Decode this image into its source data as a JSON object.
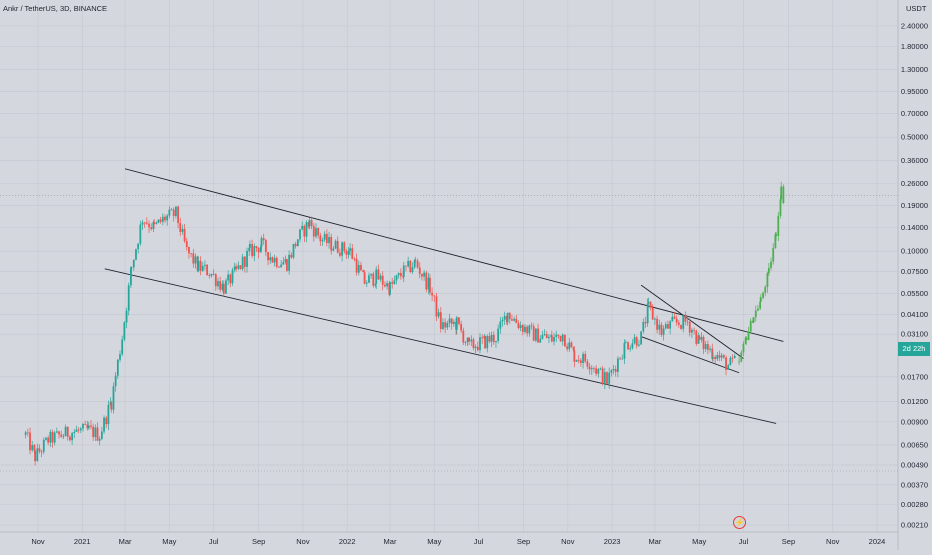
{
  "header": {
    "title": "Ankr / TetherUS, 3D, BINANCE",
    "currency": "USDT"
  },
  "price_badge": "2d 22h",
  "colors": {
    "up": "#26a69a",
    "down": "#ef5350",
    "projection": "#4caf50",
    "line": "#1e222d",
    "grid": "#c4c7d0",
    "background": "#d5d7de"
  },
  "chart_data": {
    "type": "candlestick",
    "title": "Ankr / TetherUS, 3D, BINANCE",
    "y_scale": "log",
    "y_unit": "USDT",
    "y_ticks": [
      0.0021,
      0.0028,
      0.0037,
      0.0049,
      0.0065,
      0.009,
      0.012,
      0.017,
      0.031,
      0.041,
      0.055,
      0.075,
      0.1,
      0.14,
      0.19,
      0.26,
      0.36,
      0.5,
      0.7,
      0.95,
      1.3,
      1.8,
      2.4
    ],
    "y_tick_labels": [
      "0.00210",
      "0.00280",
      "0.00370",
      "0.00490",
      "0.00650",
      "0.00900",
      "0.01200",
      "0.01700",
      "0.03100",
      "0.04100",
      "0.05500",
      "0.07500",
      "0.10000",
      "0.14000",
      "0.19000",
      "0.26000",
      "0.36000",
      "0.50000",
      "0.70000",
      "0.95000",
      "1.30000",
      "1.80000",
      "2.40000"
    ],
    "x_tick_labels": [
      "Nov",
      "2021",
      "Mar",
      "May",
      "Jul",
      "Sep",
      "Nov",
      "2022",
      "Mar",
      "May",
      "Jul",
      "Sep",
      "Nov",
      "2023",
      "Mar",
      "May",
      "Jul",
      "Sep",
      "Nov",
      "2024"
    ],
    "price_path": [
      {
        "date": "2020-10-15",
        "close": 0.0075
      },
      {
        "date": "2020-10-28",
        "close": 0.0055
      },
      {
        "date": "2020-11-15",
        "close": 0.007
      },
      {
        "date": "2020-12-15",
        "close": 0.0078
      },
      {
        "date": "2021-01-10",
        "close": 0.008
      },
      {
        "date": "2021-01-25",
        "close": 0.0075
      },
      {
        "date": "2021-02-10",
        "close": 0.012
      },
      {
        "date": "2021-02-25",
        "close": 0.03
      },
      {
        "date": "2021-03-10",
        "close": 0.08
      },
      {
        "date": "2021-03-25",
        "close": 0.16
      },
      {
        "date": "2021-04-10",
        "close": 0.14
      },
      {
        "date": "2021-04-25",
        "close": 0.16
      },
      {
        "date": "2021-05-10",
        "close": 0.17
      },
      {
        "date": "2021-05-25",
        "close": 0.1
      },
      {
        "date": "2021-06-10",
        "close": 0.08
      },
      {
        "date": "2021-06-25",
        "close": 0.075
      },
      {
        "date": "2021-07-15",
        "close": 0.06
      },
      {
        "date": "2021-08-01",
        "close": 0.075
      },
      {
        "date": "2021-08-20",
        "close": 0.1
      },
      {
        "date": "2021-09-05",
        "close": 0.11
      },
      {
        "date": "2021-09-20",
        "close": 0.09
      },
      {
        "date": "2021-10-10",
        "close": 0.085
      },
      {
        "date": "2021-10-25",
        "close": 0.12
      },
      {
        "date": "2021-11-10",
        "close": 0.15
      },
      {
        "date": "2021-11-25",
        "close": 0.12
      },
      {
        "date": "2021-12-10",
        "close": 0.11
      },
      {
        "date": "2022-01-05",
        "close": 0.1
      },
      {
        "date": "2022-01-25",
        "close": 0.065
      },
      {
        "date": "2022-02-10",
        "close": 0.07
      },
      {
        "date": "2022-03-01",
        "close": 0.06
      },
      {
        "date": "2022-03-20",
        "close": 0.075
      },
      {
        "date": "2022-04-05",
        "close": 0.085
      },
      {
        "date": "2022-04-25",
        "close": 0.06
      },
      {
        "date": "2022-05-10",
        "close": 0.035
      },
      {
        "date": "2022-06-01",
        "close": 0.036
      },
      {
        "date": "2022-06-18",
        "close": 0.026
      },
      {
        "date": "2022-07-10",
        "close": 0.028
      },
      {
        "date": "2022-07-25",
        "close": 0.03
      },
      {
        "date": "2022-08-10",
        "close": 0.042
      },
      {
        "date": "2022-08-25",
        "close": 0.036
      },
      {
        "date": "2022-09-15",
        "close": 0.031
      },
      {
        "date": "2022-10-10",
        "close": 0.029
      },
      {
        "date": "2022-10-25",
        "close": 0.031
      },
      {
        "date": "2022-11-10",
        "close": 0.023
      },
      {
        "date": "2022-12-01",
        "close": 0.021
      },
      {
        "date": "2022-12-25",
        "close": 0.016
      },
      {
        "date": "2023-01-20",
        "close": 0.027
      },
      {
        "date": "2023-02-10",
        "close": 0.03
      },
      {
        "date": "2023-02-20",
        "close": 0.045
      },
      {
        "date": "2023-03-10",
        "close": 0.032
      },
      {
        "date": "2023-03-25",
        "close": 0.036
      },
      {
        "date": "2023-04-15",
        "close": 0.037
      },
      {
        "date": "2023-05-01",
        "close": 0.028
      },
      {
        "date": "2023-05-20",
        "close": 0.024
      },
      {
        "date": "2023-06-10",
        "close": 0.02
      },
      {
        "date": "2023-06-20",
        "close": 0.021
      }
    ],
    "projection_path": [
      {
        "date": "2023-06-25",
        "close": 0.021
      },
      {
        "date": "2023-07-05",
        "close": 0.03
      },
      {
        "date": "2023-07-15",
        "close": 0.04
      },
      {
        "date": "2023-07-25",
        "close": 0.05
      },
      {
        "date": "2023-08-05",
        "close": 0.075
      },
      {
        "date": "2023-08-15",
        "close": 0.13
      },
      {
        "date": "2023-08-22",
        "close": 0.24
      },
      {
        "date": "2023-08-28",
        "close": 0.18
      }
    ],
    "trendlines": [
      {
        "name": "channel-top",
        "from": {
          "date": "2021-03-01",
          "price": 0.32
        },
        "to": {
          "date": "2023-08-25",
          "price": 0.028
        }
      },
      {
        "name": "channel-bottom",
        "from": {
          "date": "2021-02-01",
          "price": 0.078
        },
        "to": {
          "date": "2023-08-15",
          "price": 0.0088
        }
      },
      {
        "name": "small-channel-top",
        "from": {
          "date": "2023-02-10",
          "price": 0.062
        },
        "to": {
          "date": "2023-07-01",
          "price": 0.022
        }
      },
      {
        "name": "small-channel-bottom",
        "from": {
          "date": "2023-02-10",
          "price": 0.03
        },
        "to": {
          "date": "2023-06-25",
          "price": 0.018
        }
      }
    ],
    "horizontal_lines": [
      {
        "name": "dotted-high",
        "price": 0.22
      },
      {
        "name": "dotted-low",
        "price": 0.0045
      }
    ]
  }
}
